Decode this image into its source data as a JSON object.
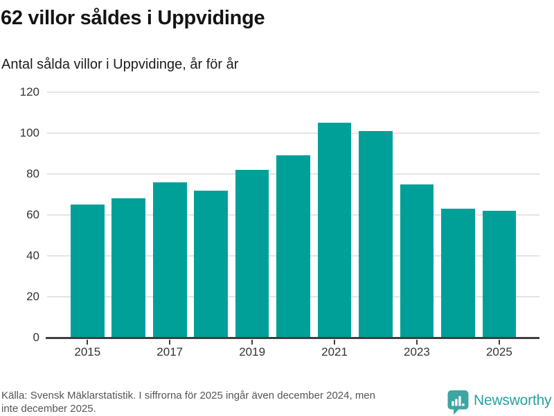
{
  "header": {
    "title": "62 villor såldes i Uppvidinge",
    "subtitle": "Antal sålda villor i Uppvidinge, år för år"
  },
  "chart_data": {
    "type": "bar",
    "title": "62 villor såldes i Uppvidinge",
    "subtitle": "Antal sålda villor i Uppvidinge, år för år",
    "categories": [
      2015,
      2016,
      2017,
      2018,
      2019,
      2020,
      2021,
      2022,
      2023,
      2024,
      2025
    ],
    "values": [
      65,
      68,
      76,
      72,
      82,
      89,
      105,
      101,
      75,
      63,
      62
    ],
    "xlabel": "",
    "ylabel": "",
    "ylim": [
      0,
      120
    ],
    "yticks": [
      0,
      20,
      40,
      60,
      80,
      100,
      120
    ],
    "xtick_labels": [
      "2015",
      "2017",
      "2019",
      "2021",
      "2023",
      "2025"
    ],
    "grid": true,
    "legend": false,
    "bar_color": "#00a099",
    "gridline_color": "#e4e4e4",
    "axis_color": "#3e3e3e",
    "tick_label_color": "#333333"
  },
  "footer": {
    "source_lines": [
      "Källa: Svensk Mäklarstatistik. I siffrorna för 2025 ingår även december 2024, men",
      "inte december 2025."
    ],
    "brand": "Newsworthy",
    "brand_icon": "bar-chart-speech-bubble-icon",
    "brand_icon_color": "#3da5a2",
    "brand_text_color": "#29a0a2"
  }
}
